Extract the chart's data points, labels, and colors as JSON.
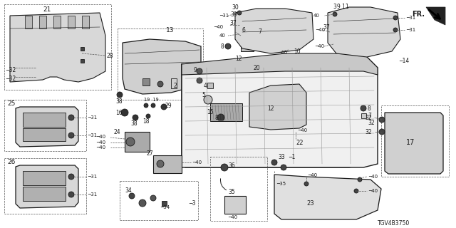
{
  "bg_color": "#ffffff",
  "line_color": "#1a1a1a",
  "part_number": "TGV4B3750",
  "fig_width": 6.4,
  "fig_height": 3.2,
  "dpi": 100
}
